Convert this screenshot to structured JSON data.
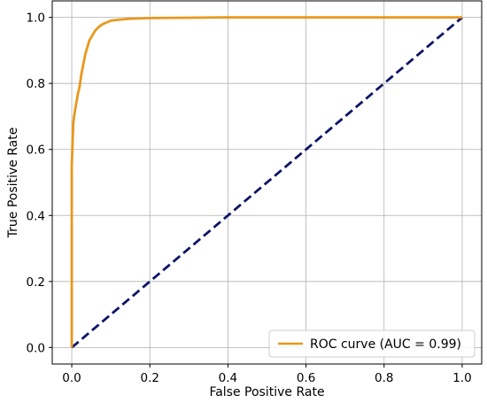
{
  "chart_data": {
    "type": "line",
    "title": "",
    "xlabel": "False Positive Rate",
    "ylabel": "True Positive Rate",
    "xlim": [
      -0.05,
      1.05
    ],
    "ylim": [
      -0.05,
      1.05
    ],
    "xticks": [
      0.0,
      0.2,
      0.4,
      0.6,
      0.8,
      1.0
    ],
    "yticks": [
      0.0,
      0.2,
      0.4,
      0.6,
      0.8,
      1.0
    ],
    "xtick_labels": [
      "0.0",
      "0.2",
      "0.4",
      "0.6",
      "0.8",
      "1.0"
    ],
    "ytick_labels": [
      "0.0",
      "0.2",
      "0.4",
      "0.6",
      "0.8",
      "1.0"
    ],
    "grid": true,
    "legend_position": "bottom-right",
    "series": [
      {
        "name": "ROC curve (AUC = 0.99)",
        "color": "#e8981e",
        "style": "solid",
        "x": [
          0.0,
          0.0,
          0.002,
          0.004,
          0.006,
          0.01,
          0.013,
          0.016,
          0.02,
          0.025,
          0.03,
          0.035,
          0.04,
          0.045,
          0.05,
          0.06,
          0.07,
          0.08,
          0.09,
          0.1,
          0.12,
          0.15,
          0.2,
          0.3,
          0.4,
          0.6,
          0.8,
          1.0
        ],
        "y": [
          0.0,
          0.55,
          0.62,
          0.68,
          0.7,
          0.73,
          0.75,
          0.77,
          0.79,
          0.83,
          0.86,
          0.89,
          0.91,
          0.93,
          0.94,
          0.96,
          0.972,
          0.98,
          0.985,
          0.99,
          0.993,
          0.996,
          0.998,
          0.999,
          1.0,
          1.0,
          1.0,
          1.0
        ]
      },
      {
        "name": "",
        "color": "#0d1466",
        "style": "dashed",
        "x": [
          0.0,
          1.0
        ],
        "y": [
          0.0,
          1.0
        ]
      }
    ]
  }
}
